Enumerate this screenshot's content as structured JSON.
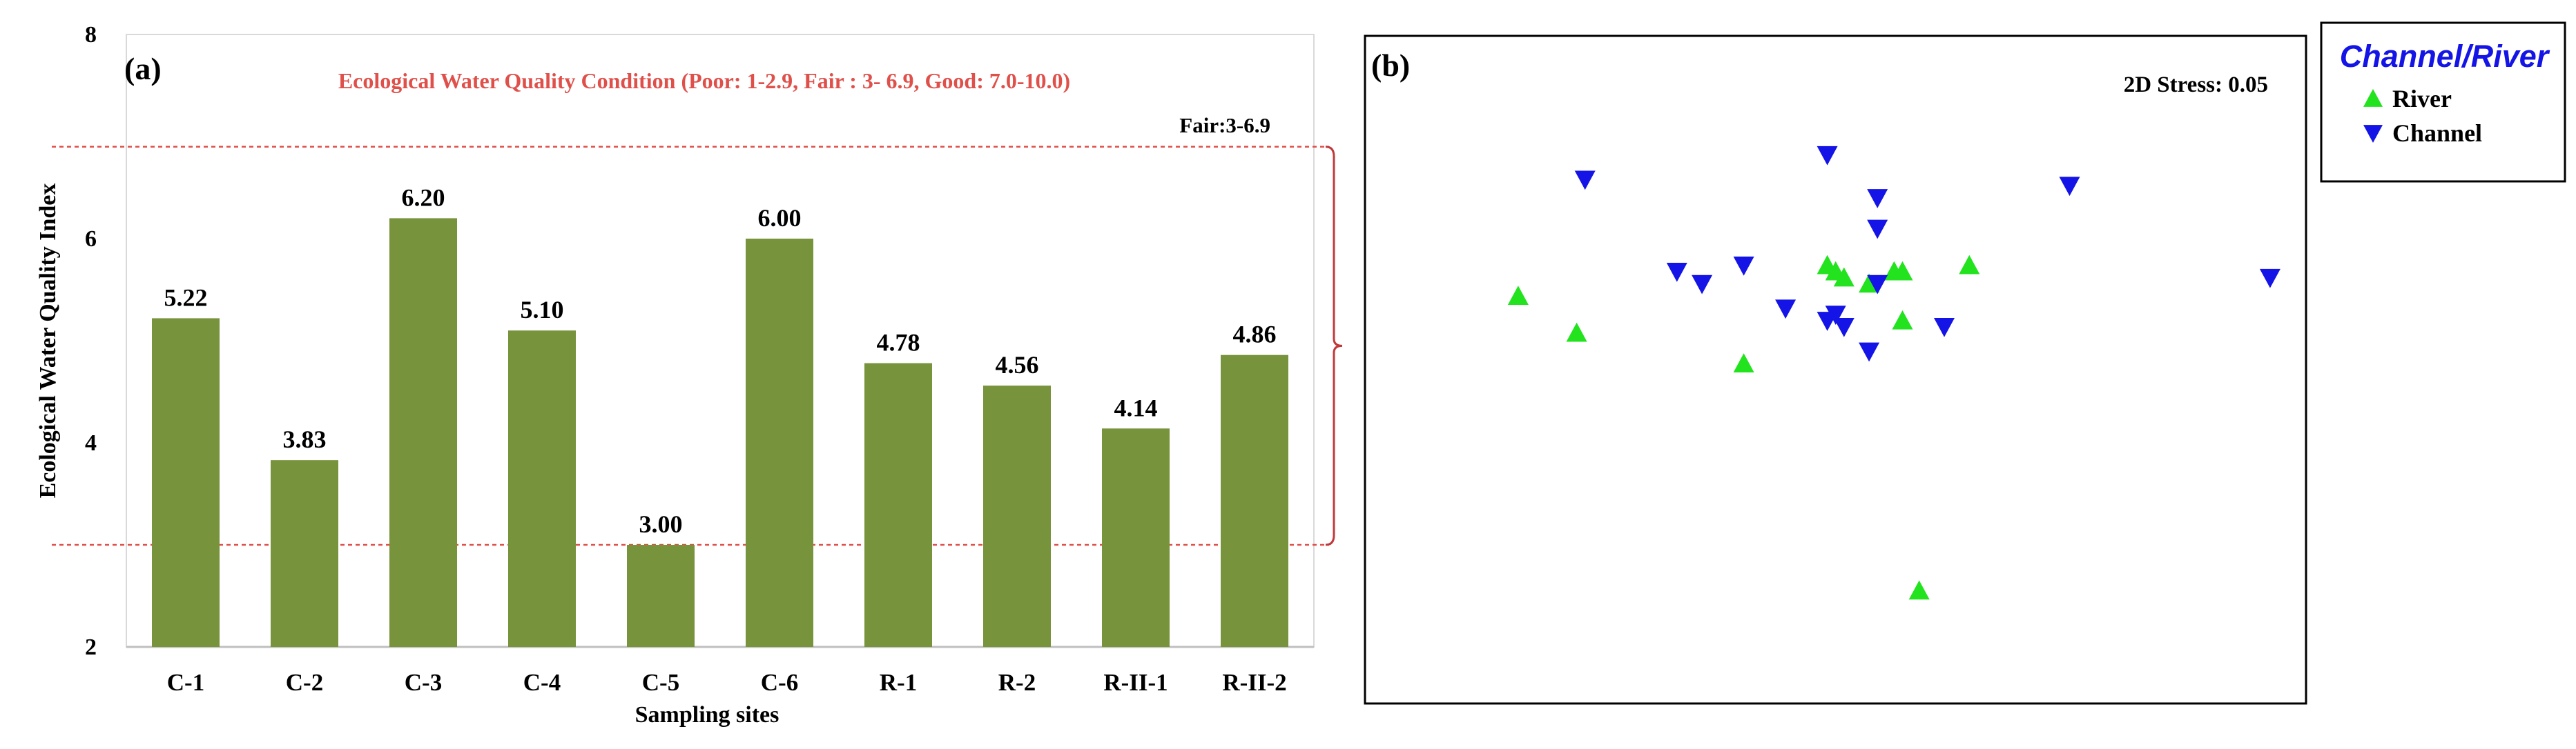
{
  "chart_data": [
    {
      "panel_label": "(a)",
      "type": "bar",
      "title": "Ecological Water Quality Condition (Poor: 1-2.9, Fair : 3- 6.9, Good: 7.0-10.0)",
      "xlabel": "Sampling sites",
      "ylabel": "Ecological Water Quality Index",
      "ylim": [
        2,
        8
      ],
      "yticks": [
        "2",
        "4",
        "6",
        "8"
      ],
      "categories": [
        "C-1",
        "C-2",
        "C-3",
        "C-4",
        "C-5",
        "C-6",
        "R-1",
        "R-2",
        "R-II-1",
        "R-II-2"
      ],
      "values": [
        5.22,
        3.83,
        6.2,
        5.1,
        3.0,
        6.0,
        4.78,
        4.56,
        4.14,
        4.86
      ],
      "value_labels": [
        "5.22",
        "3.83",
        "6.20",
        "5.10",
        "3.00",
        "6.00",
        "4.78",
        "4.56",
        "4.14",
        "4.86"
      ],
      "bar_color": "#77933C",
      "reference_lines": [
        3.0,
        6.9
      ],
      "reference_color": "#E0504A",
      "bracket_label": "Fair:3-6.9",
      "grid": false
    },
    {
      "panel_label": "(b)",
      "type": "scatter",
      "annotation": "2D Stress: 0.05",
      "xlim": [
        0,
        100
      ],
      "ylim": [
        0,
        100
      ],
      "legend_title": "Channel/River",
      "legend_title_color": "#1414E6",
      "legend_position": "outside-top-right",
      "series": [
        {
          "name": "River",
          "marker": "triangle-up",
          "color": "#22E31E",
          "points": [
            [
              9,
              63
            ],
            [
              16,
              57
            ],
            [
              36,
              52
            ],
            [
              46,
              68
            ],
            [
              47,
              67
            ],
            [
              48,
              66
            ],
            [
              51,
              65
            ],
            [
              54,
              67
            ],
            [
              55,
              67
            ],
            [
              55,
              59
            ],
            [
              63,
              68
            ],
            [
              57,
              15
            ]
          ]
        },
        {
          "name": "Channel",
          "marker": "triangle-down",
          "color": "#1414E6",
          "points": [
            [
              17,
              82
            ],
            [
              28,
              67
            ],
            [
              31,
              65
            ],
            [
              36,
              68
            ],
            [
              41,
              61
            ],
            [
              46,
              86
            ],
            [
              46,
              59
            ],
            [
              47,
              60
            ],
            [
              48,
              58
            ],
            [
              52,
              79
            ],
            [
              52,
              74
            ],
            [
              52,
              65
            ],
            [
              51,
              54
            ],
            [
              60,
              58
            ],
            [
              75,
              81
            ],
            [
              99,
              66
            ]
          ]
        }
      ]
    }
  ]
}
